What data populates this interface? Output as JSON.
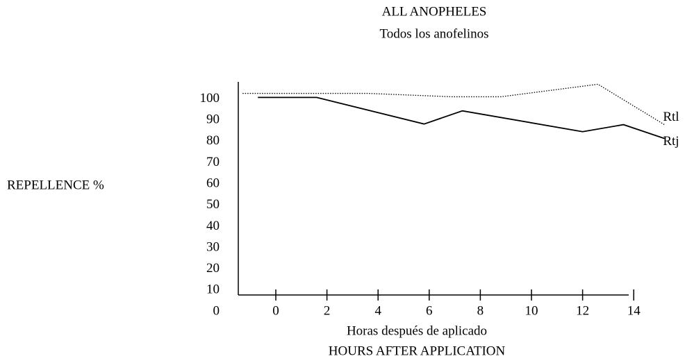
{
  "chart_data": {
    "type": "line",
    "title": "ALL ANOPHELES",
    "subtitle": "Todos los anofelinos",
    "y_label": "REPELLENCE %",
    "x_label": "Horas después de aplicado",
    "x_label_2": "HOURS AFTER APPLICATION",
    "xlim": [
      -1.5,
      15.5
    ],
    "ylim": [
      0,
      108
    ],
    "xticks": [
      0,
      2,
      4,
      6,
      8,
      10,
      12,
      14
    ],
    "yticks": [
      0,
      10,
      20,
      30,
      40,
      50,
      60,
      70,
      80,
      90,
      100
    ],
    "series": [
      {
        "name": "Rtl",
        "color": "#000000",
        "style": "dotted",
        "x": [
          -1.3,
          3.6,
          6.9,
          8.8,
          12.6,
          15.2
        ],
        "values": [
          102.6,
          102.6,
          101,
          101,
          106.9,
          87.9
        ]
      },
      {
        "name": "Rtj",
        "color": "#000000",
        "style": "solid",
        "x": [
          -0.7,
          1.6,
          5.8,
          7.3,
          12.0,
          13.6,
          15.2
        ],
        "values": [
          100.7,
          100.7,
          88.2,
          94.4,
          84.6,
          87.9,
          81.4
        ]
      }
    ]
  }
}
